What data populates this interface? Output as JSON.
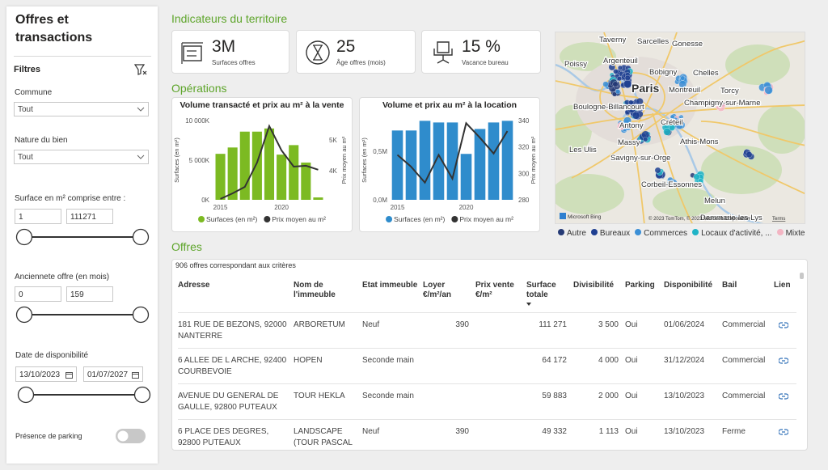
{
  "sidebar": {
    "title": "Offres et transactions",
    "filters_label": "Filtres",
    "commune": {
      "label": "Commune",
      "value": "Tout"
    },
    "nature": {
      "label": "Nature du bien",
      "value": "Tout"
    },
    "surface": {
      "label": "Surface en m² comprise entre :",
      "min": 1,
      "max": 111271
    },
    "anciennete": {
      "label": "Anciennete offre (en mois)",
      "min": 0,
      "max": 159
    },
    "disponibilite": {
      "label": "Date de disponibilité",
      "min": "13/10/2023",
      "max": "01/07/2027"
    },
    "parking": {
      "label": "Présence de parking"
    }
  },
  "indicators": {
    "title": "Indicateurs du territoire",
    "kpis": [
      {
        "value": "3M",
        "label": "Surfaces offres"
      },
      {
        "value": "25",
        "label": "Âge offres (mois)"
      },
      {
        "value": "15 %",
        "label": "Vacance bureau"
      }
    ]
  },
  "operations_title": "Opérations",
  "chart_data": [
    {
      "type": "bar",
      "title": "Volume transacté et prix au m² à la vente",
      "x": [
        2015,
        2016,
        2017,
        2018,
        2019,
        2020,
        2021,
        2022,
        2023
      ],
      "xlim": [
        2014.5,
        2023.5
      ],
      "xticks": [
        2015,
        2020
      ],
      "ylim": [
        0,
        10000000
      ],
      "yticks": [
        {
          "value": 0,
          "label": "0K"
        },
        {
          "value": 5000000,
          "label": "5 000K"
        },
        {
          "value": 10000000,
          "label": "10 000K"
        }
      ],
      "y2lim": [
        3050,
        5630
      ],
      "y2ticks": [
        {
          "value": 4000,
          "label": "4K"
        },
        {
          "value": 5000,
          "label": "5K"
        }
      ],
      "ylabel": "Surfaces (en m²)",
      "y2label": "Prix moyen au m²",
      "grid": false,
      "series": [
        {
          "name": "Surfaces (en m²)",
          "type": "bar",
          "color": "#7cba22",
          "values": [
            5800000,
            6600000,
            8600000,
            8600000,
            9000000,
            5700000,
            6900000,
            4700000,
            300000
          ]
        },
        {
          "name": "Prix moyen au m²",
          "type": "line",
          "axis": "y2",
          "color": "#333333",
          "values": [
            3080,
            3260,
            3470,
            4260,
            5450,
            4660,
            4130,
            4160,
            4030
          ]
        }
      ]
    },
    {
      "type": "bar",
      "title": "Volume et prix au m² à la location",
      "x": [
        2015,
        2016,
        2017,
        2018,
        2019,
        2020,
        2021,
        2022,
        2023
      ],
      "xlim": [
        2014.5,
        2023.5
      ],
      "xticks": [
        2015,
        2020
      ],
      "ylim": [
        0,
        820000
      ],
      "yticks": [
        {
          "value": 0,
          "label": "0,0M"
        },
        {
          "value": 500000,
          "label": "0,5M"
        }
      ],
      "y2lim": [
        280,
        340
      ],
      "y2ticks": [
        280,
        300,
        320,
        340
      ],
      "ylabel": "Surfaces (en m²)",
      "y2label": "Prix moyen au m²",
      "grid": false,
      "series": [
        {
          "name": "Surfaces (en m²)",
          "type": "bar",
          "color": "#2f8ccc",
          "values": [
            717000,
            717000,
            817000,
            800000,
            800000,
            475000,
            733000,
            800000,
            817000
          ]
        },
        {
          "name": "Prix moyen au m²",
          "type": "line",
          "axis": "y2",
          "color": "#333333",
          "values": [
            314,
            305,
            293,
            314,
            296,
            338,
            327,
            315,
            332
          ]
        }
      ]
    }
  ],
  "map": {
    "places": [
      "Taverny",
      "Sarcelles",
      "Gonesse",
      "Poissy",
      "Argenteuil",
      "Bobigny",
      "Chelles",
      "Paris",
      "Montreuil",
      "Boulogne-Billancourt",
      "Champigny-sur-Marne",
      "Torcy",
      "Créteil",
      "Antony",
      "Athis-Mons",
      "Massy",
      "Les Ulis",
      "Savigny-sur-Orge",
      "Corbeil-Essonnes",
      "Melun",
      "Dammarie-les-Lys"
    ],
    "provider": "Microsoft Bing",
    "attribution": "© 2023 TomTom, © 2023 Microsoft Corporation",
    "terms": "Terms",
    "legend": [
      {
        "name": "Autre",
        "color": "#253a75"
      },
      {
        "name": "Bureaux",
        "color": "#1e3f91"
      },
      {
        "name": "Commerces",
        "color": "#3b8fd6"
      },
      {
        "name": "Locaux d'activité, ...",
        "color": "#1fb3c6"
      },
      {
        "name": "Mixte",
        "color": "#f3b5c3"
      }
    ]
  },
  "offers": {
    "title": "Offres",
    "count_text": "906 offres correspondant aux critères",
    "columns": [
      "Adresse",
      "Nom de l'immeuble",
      "Etat immeuble",
      "Loyer €/m²/an",
      "Prix vente €/m²",
      "Surface totale",
      "Divisibilité",
      "Parking",
      "Disponibilité",
      "Bail",
      "Lien"
    ],
    "rows": [
      [
        "181 RUE DE BEZONS, 92000 NANTERRE",
        "ARBORETUM",
        "Neuf",
        "390",
        null,
        "111 271",
        "3 500",
        "Oui",
        "01/06/2024",
        "Commercial"
      ],
      [
        "6 ALLEE DE L ARCHE, 92400 COURBEVOIE",
        "HOPEN",
        "Seconde main",
        null,
        null,
        "64 172",
        "4 000",
        "Oui",
        "31/12/2024",
        "Commercial"
      ],
      [
        "AVENUE DU GENERAL DE GAULLE, 92800 PUTEAUX",
        "TOUR HEKLA",
        "Seconde main",
        null,
        null,
        "59 883",
        "2 000",
        "Oui",
        "13/10/2023",
        "Commercial"
      ],
      [
        "6 PLACE DES DEGRES, 92800 PUTEAUX",
        "LANDSCAPE (TOUR PASCAL",
        "Neuf",
        "390",
        null,
        "49 332",
        "1 113",
        "Oui",
        "13/10/2023",
        "Ferme"
      ]
    ]
  }
}
